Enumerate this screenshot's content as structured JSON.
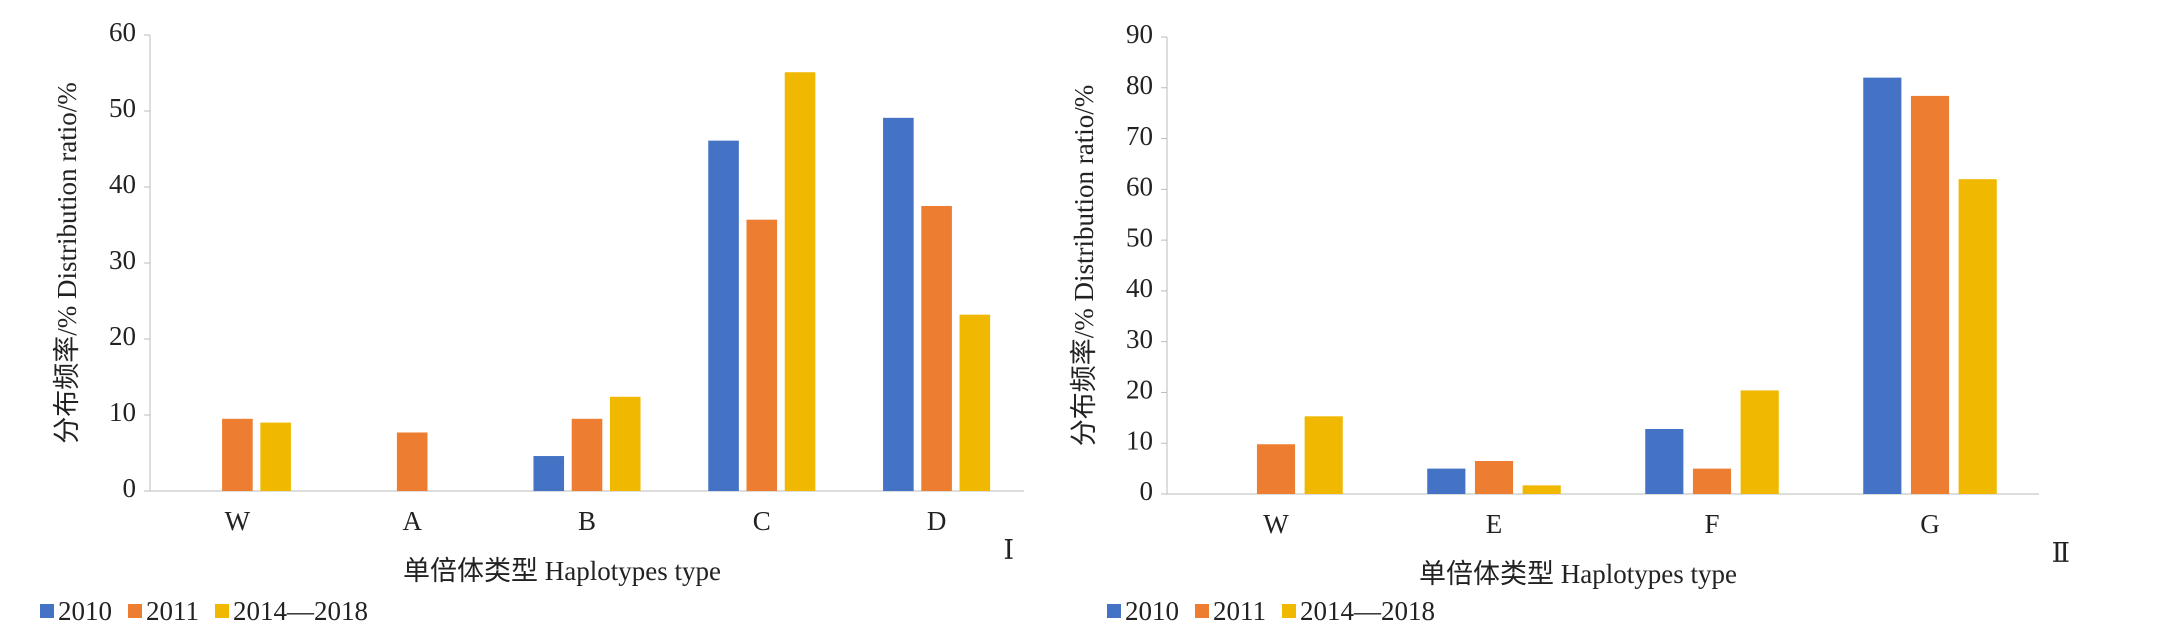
{
  "chart_data": [
    {
      "type": "bar",
      "panel_label": "Ⅰ",
      "ylabel": "分布频率/%  Distribution ratio/%",
      "xlabel": "单倍体类型  Haplotypes type",
      "categories": [
        "W",
        "A",
        "B",
        "C",
        "D"
      ],
      "series": [
        {
          "name": "2010",
          "color": "#4472c4",
          "values": [
            0,
            0,
            4.6,
            46.1,
            49.1
          ]
        },
        {
          "name": "2011",
          "color": "#ed7d31",
          "values": [
            9.5,
            7.7,
            9.5,
            35.7,
            37.5
          ]
        },
        {
          "name": "2014—2018",
          "color": "#f0b800",
          "values": [
            9.0,
            0,
            12.4,
            55.1,
            23.2
          ]
        }
      ],
      "ylim": [
        0,
        60
      ],
      "yticks": [
        0,
        10,
        20,
        30,
        40,
        50,
        60
      ]
    },
    {
      "type": "bar",
      "panel_label": "Ⅱ",
      "ylabel": "分布频率/%  Distribution ratio/%",
      "xlabel": "单倍体类型  Haplotypes type",
      "categories": [
        "W",
        "E",
        "F",
        "G"
      ],
      "series": [
        {
          "name": "2010",
          "color": "#4472c4",
          "values": [
            0,
            5.0,
            12.8,
            82.0
          ]
        },
        {
          "name": "2011",
          "color": "#ed7d31",
          "values": [
            9.8,
            6.5,
            5.0,
            78.4
          ]
        },
        {
          "name": "2014—2018",
          "color": "#f0b800",
          "values": [
            15.3,
            1.7,
            20.4,
            62.0
          ]
        }
      ],
      "ylim": [
        0,
        90
      ],
      "yticks": [
        0,
        10,
        20,
        30,
        40,
        50,
        60,
        70,
        80,
        90
      ]
    }
  ]
}
